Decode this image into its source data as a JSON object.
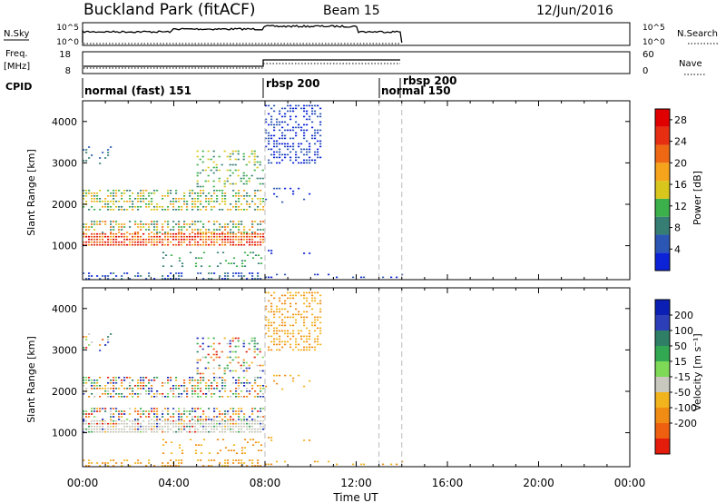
{
  "header": {
    "station": "Buckland Park (fitACF)",
    "beam": "Beam 15",
    "date": "12/Jun/2016"
  },
  "panels": {
    "nsky_label": "N.Sky",
    "nsearch_label": "N.Search",
    "nsky_ticks": [
      "10^5",
      "10^0"
    ],
    "nsearch_ticks": [
      "10^5",
      "10^0"
    ],
    "freq_label_1": "Freq.",
    "freq_label_2": "[MHz]",
    "freq_ticks": [
      "18",
      "8"
    ],
    "nave_label": "Nave",
    "nave_ticks": [
      "60",
      "0"
    ],
    "cpid_label": "CPID",
    "cpid_segments": [
      {
        "start_h": 0,
        "label": "normal (fast) 151"
      },
      {
        "start_h": 8,
        "label": "rbsp 200"
      },
      {
        "start_h": 13,
        "label": "normal 150"
      },
      {
        "start_h": 14,
        "label": "rbsp 200"
      }
    ]
  },
  "chart_data": {
    "type": "heatmap",
    "xlabel": "Time UT",
    "x_ticks": [
      "00:00",
      "04:00",
      "08:00",
      "12:00",
      "16:00",
      "20:00",
      "00:00"
    ],
    "xlim_hours": [
      0,
      24
    ],
    "ylabel": "Slant Range [km]",
    "y_ticks": [
      "1000",
      "2000",
      "3000",
      "4000"
    ],
    "ylim_km": [
      180,
      4500
    ],
    "data_window_hours": [
      0,
      14
    ],
    "dashed_markers_hours": [
      8,
      13,
      14
    ],
    "power": {
      "colorbar_label": "Power [dB]",
      "ticks": [
        "4",
        "8",
        "12",
        "16",
        "20",
        "24",
        "28"
      ],
      "range": [
        0,
        30
      ],
      "colors": [
        "#0c22d6",
        "#2c56b4",
        "#367e74",
        "#3cb04a",
        "#d8c61c",
        "#f6a41c",
        "#ee6814",
        "#e62e12",
        "#e00000"
      ]
    },
    "velocity": {
      "colorbar_label": "Velocity [m s⁻¹]",
      "ticks": [
        "200",
        "100",
        "50",
        "15",
        "-15",
        "-50",
        "-100",
        "-200"
      ],
      "colors": [
        "#0b1fb5",
        "#2c3fb8",
        "#2f7f66",
        "#33a852",
        "#7ed957",
        "#c8c8be",
        "#f2b41c",
        "#f08c14",
        "#ee6010",
        "#e41c0c"
      ]
    }
  }
}
